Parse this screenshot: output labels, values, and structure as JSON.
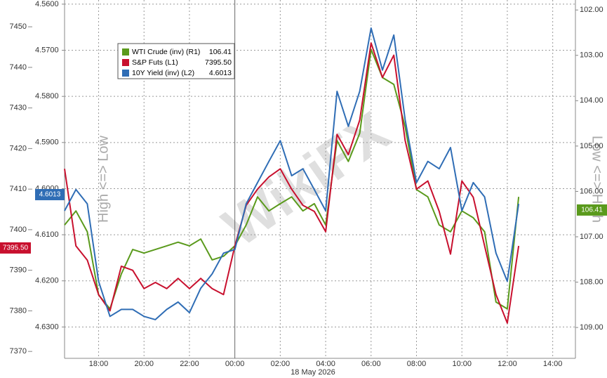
{
  "chart_data": {
    "type": "line",
    "watermark": "WikiFX",
    "left_axis_title": "High <=> Low",
    "right_axis_title": "Low <=> High",
    "date_label": "18 May 2026",
    "x": [
      16.5,
      17,
      17.5,
      18,
      18.5,
      19,
      19.5,
      20,
      20.5,
      21,
      21.5,
      22,
      22.5,
      23,
      23.5,
      24,
      24.5,
      25,
      25.5,
      26,
      26.5,
      27,
      27.5,
      28,
      28.5,
      29,
      29.5,
      30,
      30.5,
      31,
      31.5,
      32,
      32.5,
      33,
      33.5,
      34,
      34.5,
      35,
      35.5,
      36,
      36.5
    ],
    "xlim": [
      16.5,
      39
    ],
    "xticks": [
      {
        "value": 18,
        "label": "18:00"
      },
      {
        "value": 20,
        "label": "20:00"
      },
      {
        "value": 22,
        "label": "22:00"
      },
      {
        "value": 24,
        "label": "00:00"
      },
      {
        "value": 26,
        "label": "02:00"
      },
      {
        "value": 28,
        "label": "04:00"
      },
      {
        "value": 30,
        "label": "06:00"
      },
      {
        "value": 32,
        "label": "08:00"
      },
      {
        "value": 34,
        "label": "10:00"
      },
      {
        "value": 36,
        "label": "12:00"
      },
      {
        "value": 38,
        "label": "14:00"
      }
    ],
    "ylim": [
      7368.3,
      7456.6
    ],
    "yticks": [
      7370,
      7380,
      7390,
      7400,
      7410,
      7420,
      7430,
      7440,
      7450
    ],
    "y2lim": [
      109.68,
      101.78
    ],
    "y2ticks": [
      {
        "value": 102,
        "label": "102.00"
      },
      {
        "value": 103,
        "label": "103.00"
      },
      {
        "value": 104,
        "label": "104.00"
      },
      {
        "value": 105,
        "label": "105.00"
      },
      {
        "value": 106,
        "label": "106.00"
      },
      {
        "value": 107,
        "label": "107.00"
      },
      {
        "value": 108,
        "label": "108.00"
      },
      {
        "value": 109,
        "label": "109.00"
      }
    ],
    "y3lim": [
      4.6368,
      4.5591
    ],
    "y3ticks": [
      {
        "value": 4.56,
        "label": "4.5600"
      },
      {
        "value": 4.57,
        "label": "4.5700"
      },
      {
        "value": 4.58,
        "label": "4.5800"
      },
      {
        "value": 4.59,
        "label": "4.5900"
      },
      {
        "value": 4.6,
        "label": "4.6000"
      },
      {
        "value": 4.61,
        "label": "4.6100"
      },
      {
        "value": 4.62,
        "label": "4.6200"
      },
      {
        "value": 4.63,
        "label": "4.6300"
      }
    ],
    "grid": true,
    "series": [
      {
        "name": "WTI Crude (inv) (R1)",
        "color": "#5a9a1c",
        "axis": "y2",
        "last": 106.41,
        "values": [
          106.74,
          106.43,
          106.89,
          108.28,
          108.59,
          107.82,
          107.28,
          107.36,
          107.28,
          107.2,
          107.12,
          107.2,
          107.05,
          107.51,
          107.43,
          107.2,
          106.74,
          106.12,
          106.43,
          106.27,
          106.12,
          106.43,
          106.27,
          106.74,
          104.88,
          105.34,
          104.72,
          102.87,
          103.49,
          103.64,
          104.57,
          105.96,
          106.12,
          106.74,
          106.89,
          106.43,
          106.58,
          106.89,
          108.44,
          108.59,
          106.12
        ]
      },
      {
        "name": "S&P Futs (L1)",
        "color": "#c8102e",
        "axis": "y",
        "last": 7395.5,
        "last_label": "7395.50",
        "values": [
          7415,
          7396,
          7392.5,
          7384,
          7380,
          7391,
          7390,
          7385.5,
          7387,
          7385.5,
          7388,
          7385.5,
          7388,
          7385.5,
          7384,
          7396,
          7406,
          7410,
          7413,
          7415,
          7410,
          7406,
          7404.5,
          7399.5,
          7423.5,
          7418.5,
          7427,
          7446,
          7437.5,
          7443,
          7422,
          7410,
          7412,
          7404.5,
          7394,
          7412,
          7408,
          7396,
          7384,
          7377,
          7396
        ]
      },
      {
        "name": "10Y Yield (inv) (L2)",
        "color": "#2f6db5",
        "axis": "y3",
        "last": 4.6013,
        "values": [
          4.6048,
          4.6002,
          4.6033,
          4.6201,
          4.6277,
          4.6262,
          4.6262,
          4.6277,
          4.6284,
          4.6262,
          4.6246,
          4.6269,
          4.6216,
          4.6185,
          4.614,
          4.6132,
          4.6033,
          4.5987,
          4.5941,
          4.5896,
          4.5972,
          4.5957,
          4.6002,
          4.6048,
          4.5789,
          4.5865,
          4.5789,
          4.5652,
          4.5743,
          4.5667,
          4.585,
          4.5987,
          4.5941,
          4.5957,
          4.5911,
          4.6048,
          4.5987,
          4.6018,
          4.614,
          4.6201,
          4.6033
        ]
      }
    ]
  }
}
